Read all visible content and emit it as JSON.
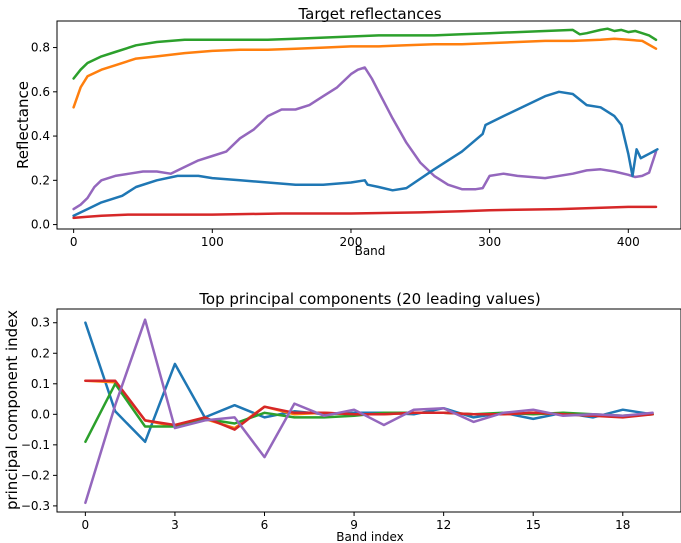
{
  "chart_data": [
    {
      "type": "line",
      "title": "Target reflectances",
      "xlabel": "Band",
      "ylabel": "Reflectance",
      "xlim": [
        -12,
        438
      ],
      "ylim": [
        -0.02,
        0.92
      ],
      "xticks": [
        0,
        100,
        200,
        300,
        400
      ],
      "yticks": [
        0.0,
        0.2,
        0.4,
        0.6,
        0.8
      ],
      "ytick_labels": [
        "0.0",
        "0.2",
        "0.4",
        "0.6",
        "0.8"
      ],
      "grid": false,
      "series": [
        {
          "color": "#2ca02c",
          "x": [
            0,
            5,
            10,
            20,
            30,
            45,
            60,
            80,
            100,
            120,
            140,
            160,
            180,
            200,
            220,
            240,
            260,
            280,
            300,
            320,
            340,
            360,
            365,
            370,
            380,
            385,
            390,
            395,
            400,
            405,
            410,
            415,
            420
          ],
          "y": [
            0.66,
            0.7,
            0.73,
            0.76,
            0.78,
            0.81,
            0.825,
            0.835,
            0.835,
            0.835,
            0.835,
            0.84,
            0.845,
            0.85,
            0.855,
            0.855,
            0.855,
            0.86,
            0.865,
            0.87,
            0.875,
            0.88,
            0.86,
            0.865,
            0.88,
            0.885,
            0.875,
            0.88,
            0.87,
            0.875,
            0.865,
            0.855,
            0.835
          ]
        },
        {
          "color": "#ff7f0e",
          "x": [
            0,
            5,
            10,
            20,
            30,
            45,
            60,
            80,
            100,
            120,
            140,
            160,
            180,
            200,
            220,
            240,
            260,
            280,
            300,
            320,
            340,
            360,
            380,
            390,
            400,
            410,
            420
          ],
          "y": [
            0.53,
            0.62,
            0.67,
            0.7,
            0.72,
            0.75,
            0.76,
            0.775,
            0.785,
            0.79,
            0.79,
            0.795,
            0.8,
            0.805,
            0.805,
            0.81,
            0.815,
            0.815,
            0.82,
            0.825,
            0.83,
            0.83,
            0.835,
            0.84,
            0.835,
            0.83,
            0.795
          ]
        },
        {
          "color": "#9467bd",
          "x": [
            0,
            5,
            10,
            15,
            20,
            30,
            40,
            50,
            60,
            70,
            80,
            90,
            100,
            110,
            120,
            130,
            140,
            150,
            160,
            170,
            180,
            190,
            200,
            205,
            210,
            215,
            220,
            230,
            240,
            250,
            260,
            270,
            280,
            290,
            295,
            300,
            310,
            320,
            340,
            360,
            370,
            380,
            390,
            400,
            405,
            410,
            415,
            420
          ],
          "y": [
            0.07,
            0.09,
            0.12,
            0.17,
            0.2,
            0.22,
            0.23,
            0.24,
            0.24,
            0.23,
            0.26,
            0.29,
            0.31,
            0.33,
            0.39,
            0.43,
            0.49,
            0.52,
            0.52,
            0.54,
            0.58,
            0.62,
            0.68,
            0.7,
            0.71,
            0.66,
            0.6,
            0.48,
            0.37,
            0.28,
            0.22,
            0.18,
            0.16,
            0.16,
            0.165,
            0.22,
            0.23,
            0.22,
            0.21,
            0.23,
            0.245,
            0.25,
            0.24,
            0.225,
            0.215,
            0.22,
            0.235,
            0.33
          ]
        },
        {
          "color": "#1f77b4",
          "x": [
            0,
            10,
            20,
            35,
            45,
            60,
            75,
            90,
            100,
            120,
            140,
            160,
            180,
            200,
            210,
            212,
            220,
            230,
            240,
            260,
            280,
            295,
            297,
            310,
            320,
            340,
            350,
            360,
            370,
            380,
            390,
            395,
            400,
            403,
            406,
            409,
            412,
            415,
            418,
            421
          ],
          "y": [
            0.04,
            0.07,
            0.1,
            0.13,
            0.17,
            0.2,
            0.22,
            0.22,
            0.21,
            0.2,
            0.19,
            0.18,
            0.18,
            0.19,
            0.2,
            0.18,
            0.17,
            0.155,
            0.165,
            0.25,
            0.33,
            0.41,
            0.45,
            0.49,
            0.52,
            0.58,
            0.6,
            0.59,
            0.54,
            0.53,
            0.49,
            0.45,
            0.32,
            0.22,
            0.34,
            0.3,
            0.31,
            0.32,
            0.33,
            0.34
          ]
        },
        {
          "color": "#d62728",
          "x": [
            0,
            10,
            20,
            40,
            60,
            80,
            100,
            150,
            200,
            250,
            280,
            300,
            350,
            400,
            420
          ],
          "y": [
            0.03,
            0.035,
            0.04,
            0.045,
            0.045,
            0.045,
            0.045,
            0.05,
            0.05,
            0.055,
            0.06,
            0.065,
            0.07,
            0.08,
            0.08
          ]
        }
      ]
    },
    {
      "type": "line",
      "title": "Top principal components (20 leading values)",
      "xlabel": "Band index",
      "ylabel": "principal component index",
      "xlim": [
        -0.95,
        19.95
      ],
      "ylim": [
        -0.32,
        0.345
      ],
      "xticks": [
        0,
        3,
        6,
        9,
        12,
        15,
        18
      ],
      "yticks": [
        -0.3,
        -0.2,
        -0.1,
        0.0,
        0.1,
        0.2,
        0.3
      ],
      "ytick_labels": [
        "−0.3",
        "−0.2",
        "−0.1",
        "0.0",
        "0.1",
        "0.2",
        "0.3"
      ],
      "grid": false,
      "series": [
        {
          "color": "#1f77b4",
          "x": [
            0,
            1,
            2,
            3,
            4,
            5,
            6,
            7,
            8,
            9,
            10,
            11,
            12,
            13,
            14,
            15,
            16,
            17,
            18,
            19
          ],
          "y": [
            0.3,
            0.01,
            -0.09,
            0.165,
            -0.01,
            0.03,
            -0.01,
            0.01,
            0.0,
            0.005,
            0.005,
            0.0,
            0.02,
            -0.01,
            0.005,
            -0.015,
            0.005,
            -0.01,
            0.015,
            0.0
          ]
        },
        {
          "color": "#ff7f0e",
          "x": [
            0,
            1,
            2,
            3,
            4,
            5,
            6,
            7,
            8,
            9,
            10,
            11,
            12,
            13,
            14,
            15,
            16,
            17,
            18,
            19
          ],
          "y": [
            0.11,
            0.105,
            -0.02,
            -0.04,
            -0.015,
            -0.045,
            0.025,
            0.0,
            0.005,
            0.0,
            0.0,
            0.005,
            0.005,
            0.0,
            0.0,
            0.005,
            0.0,
            -0.005,
            -0.005,
            0.0
          ]
        },
        {
          "color": "#2ca02c",
          "x": [
            0,
            1,
            2,
            3,
            4,
            5,
            6,
            7,
            8,
            9,
            10,
            11,
            12,
            13,
            14,
            15,
            16,
            17,
            18,
            19
          ],
          "y": [
            -0.09,
            0.1,
            -0.04,
            -0.04,
            -0.015,
            -0.03,
            0.005,
            -0.01,
            -0.01,
            -0.005,
            0.005,
            0.005,
            0.005,
            0.0,
            0.005,
            0.0,
            0.005,
            0.0,
            -0.005,
            0.0
          ]
        },
        {
          "color": "#d62728",
          "x": [
            0,
            1,
            2,
            3,
            4,
            5,
            6,
            7,
            8,
            9,
            10,
            11,
            12,
            13,
            14,
            15,
            16,
            17,
            18,
            19
          ],
          "y": [
            0.11,
            0.11,
            -0.02,
            -0.035,
            -0.01,
            -0.05,
            0.025,
            0.005,
            0.005,
            0.0,
            0.0,
            0.005,
            0.005,
            0.0,
            0.0,
            0.005,
            0.0,
            -0.005,
            -0.01,
            0.0
          ]
        },
        {
          "color": "#9467bd",
          "x": [
            0,
            1,
            2,
            3,
            4,
            5,
            6,
            7,
            8,
            9,
            10,
            11,
            12,
            13,
            14,
            15,
            16,
            17,
            18,
            19
          ],
          "y": [
            -0.29,
            0.03,
            0.31,
            -0.045,
            -0.02,
            -0.01,
            -0.14,
            0.035,
            -0.005,
            0.015,
            -0.035,
            0.015,
            0.02,
            -0.025,
            0.005,
            0.015,
            -0.005,
            0.0,
            -0.005,
            0.005
          ]
        }
      ]
    }
  ]
}
